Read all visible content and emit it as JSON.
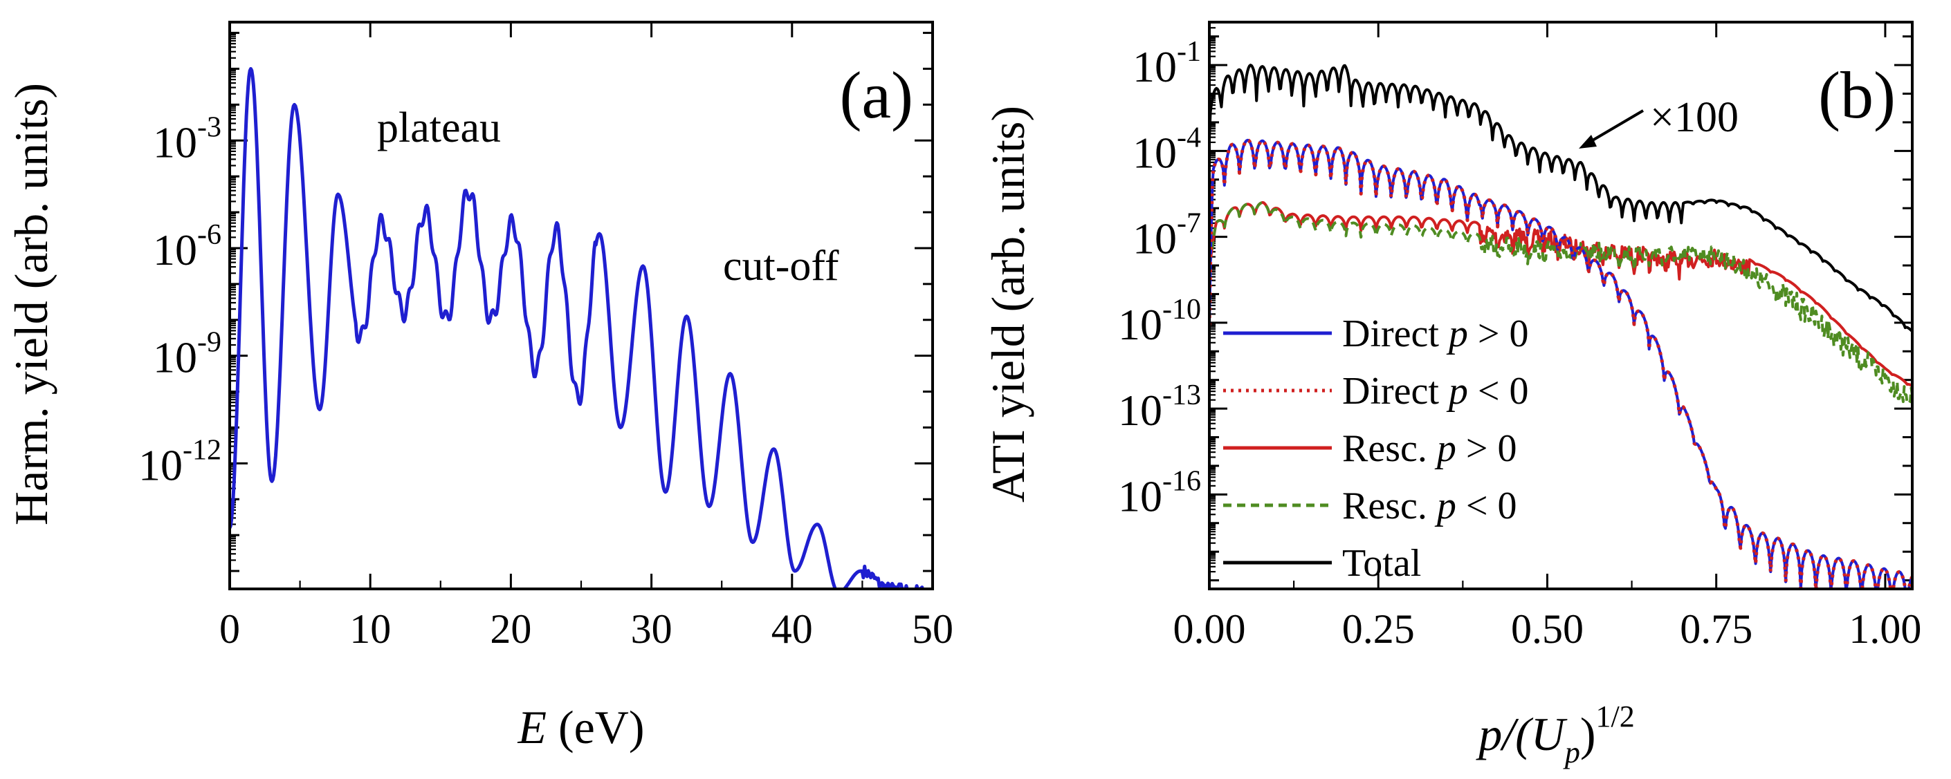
{
  "chart_data": [
    {
      "type": "line",
      "panel_label": "(a)",
      "xlabel": "E",
      "xlabel_unit": "(eV)",
      "ylabel": "Harm. yield (arb. units)",
      "xlim": [
        0,
        50
      ],
      "ylog10_lim": [
        -15.5,
        0.3
      ],
      "xticks": [
        "0",
        "10",
        "20",
        "30",
        "40",
        "50"
      ],
      "yticks": [
        {
          "exp": -3,
          "text": "10",
          "sup": "-3"
        },
        {
          "exp": -6,
          "text": "10",
          "sup": "-6"
        },
        {
          "exp": -9,
          "text": "10",
          "sup": "-9"
        },
        {
          "exp": -12,
          "text": "10",
          "sup": "-12"
        }
      ],
      "annotations": {
        "plateau": "plateau",
        "cutoff": "cut-off"
      },
      "color": "#1f1fd0",
      "peaks_x": [
        1.5,
        4.6,
        7.7,
        10.8,
        13.9,
        17.0,
        20.1,
        23.2,
        26.3,
        29.4,
        32.5,
        35.6,
        38.7,
        41.8,
        44.9
      ],
      "peaks_log10": [
        -1.0,
        -2.0,
        -4.5,
        -5.3,
        -5.0,
        -4.4,
        -5.3,
        -5.5,
        -5.6,
        -6.5,
        -7.9,
        -9.5,
        -11.6,
        -13.7,
        -15.0
      ],
      "valleys_x": [
        0.0,
        3.0,
        6.4,
        9.3,
        12.4,
        15.4,
        18.6,
        21.8,
        24.8,
        27.8,
        31.0,
        34.1,
        37.2,
        40.2,
        43.3,
        47.0,
        50.0
      ],
      "valleys_log10": [
        -13.8,
        -12.5,
        -10.5,
        -8.5,
        -7.8,
        -8.0,
        -8.0,
        -9.4,
        -10.2,
        -11.0,
        -12.8,
        -13.2,
        -14.2,
        -15.0,
        -15.6,
        -15.5,
        -15.6
      ]
    },
    {
      "type": "line",
      "panel_label": "(b)",
      "xlabel": "p/(U",
      "xlabel_sub": "p",
      "xlabel_close": ")",
      "xlabel_sup": "1/2",
      "ylabel": "ATI yield (arb. units)",
      "xlim": [
        0,
        1.04
      ],
      "ylog10_lim": [
        -19.3,
        0.5
      ],
      "xticks": [
        "0.00",
        "0.25",
        "0.50",
        "0.75",
        "1.00"
      ],
      "xtick_values": [
        0,
        0.25,
        0.5,
        0.75,
        1.0
      ],
      "yticks": [
        {
          "exp": -1,
          "text": "10",
          "sup": "-1"
        },
        {
          "exp": -4,
          "text": "10",
          "sup": "-4"
        },
        {
          "exp": -7,
          "text": "10",
          "sup": "-7"
        },
        {
          "exp": -10,
          "text": "10",
          "sup": "-10"
        },
        {
          "exp": -13,
          "text": "10",
          "sup": "-13"
        },
        {
          "exp": -16,
          "text": "10",
          "sup": "-16"
        }
      ],
      "annotation": "×100",
      "series": [
        {
          "name": "Direct p > 0",
          "prefix": "Direct ",
          "var": "p",
          "rel": " > 0",
          "color": "#1f1fd0",
          "dash": "",
          "points": [
            [
              0,
              -8.5
            ],
            [
              0.005,
              -4.5
            ],
            [
              0.03,
              -3.8
            ],
            [
              0.06,
              -3.6
            ],
            [
              0.1,
              -3.7
            ],
            [
              0.15,
              -3.8
            ],
            [
              0.2,
              -3.9
            ],
            [
              0.25,
              -4.5
            ],
            [
              0.3,
              -4.7
            ],
            [
              0.35,
              -5.0
            ],
            [
              0.4,
              -5.6
            ],
            [
              0.45,
              -6.0
            ],
            [
              0.5,
              -6.6
            ],
            [
              0.55,
              -7.4
            ],
            [
              0.6,
              -8.4
            ],
            [
              0.65,
              -10.0
            ],
            [
              0.7,
              -12.8
            ],
            [
              0.75,
              -15.8
            ],
            [
              0.8,
              -17.2
            ],
            [
              0.85,
              -17.6
            ],
            [
              0.9,
              -18.1
            ],
            [
              0.95,
              -18.3
            ],
            [
              1.0,
              -18.6
            ],
            [
              1.04,
              -18.8
            ]
          ]
        },
        {
          "name": "Direct p < 0",
          "prefix": "Direct ",
          "var": "p",
          "rel": " < 0",
          "color": "#d02020",
          "dash": "4,7",
          "points": [
            [
              0,
              -8.5
            ],
            [
              0.005,
              -4.5
            ],
            [
              0.03,
              -3.8
            ],
            [
              0.06,
              -3.6
            ],
            [
              0.1,
              -3.7
            ],
            [
              0.15,
              -3.8
            ],
            [
              0.2,
              -3.9
            ],
            [
              0.25,
              -4.5
            ],
            [
              0.3,
              -4.7
            ],
            [
              0.35,
              -5.0
            ],
            [
              0.4,
              -5.6
            ],
            [
              0.45,
              -6.0
            ],
            [
              0.5,
              -6.6
            ],
            [
              0.55,
              -7.4
            ],
            [
              0.6,
              -8.4
            ],
            [
              0.65,
              -10.0
            ],
            [
              0.7,
              -12.8
            ],
            [
              0.75,
              -15.8
            ],
            [
              0.8,
              -17.2
            ],
            [
              0.85,
              -17.6
            ],
            [
              0.9,
              -18.1
            ],
            [
              0.95,
              -18.3
            ],
            [
              1.0,
              -18.6
            ],
            [
              1.04,
              -18.8
            ]
          ]
        },
        {
          "name": "Resc. p > 0",
          "prefix": "Resc. ",
          "var": "p",
          "rel": " > 0",
          "color": "#d02020",
          "dash": "",
          "points": [
            [
              0,
              -7.8
            ],
            [
              0.01,
              -6.5
            ],
            [
              0.04,
              -5.9
            ],
            [
              0.08,
              -5.8
            ],
            [
              0.12,
              -6.2
            ],
            [
              0.2,
              -6.3
            ],
            [
              0.3,
              -6.3
            ],
            [
              0.4,
              -6.5
            ],
            [
              0.5,
              -6.8
            ],
            [
              0.6,
              -7.2
            ],
            [
              0.7,
              -7.5
            ],
            [
              0.75,
              -7.4
            ],
            [
              0.8,
              -7.8
            ],
            [
              0.85,
              -8.4
            ],
            [
              0.9,
              -9.3
            ],
            [
              0.95,
              -10.5
            ],
            [
              1.0,
              -11.6
            ],
            [
              1.04,
              -12.2
            ]
          ]
        },
        {
          "name": "Resc. p < 0",
          "prefix": "Resc. ",
          "var": "p",
          "rel": " < 0",
          "color": "#4f8c22",
          "dash": "12,8",
          "points": [
            [
              0,
              -7.8
            ],
            [
              0.01,
              -6.5
            ],
            [
              0.04,
              -5.9
            ],
            [
              0.08,
              -5.8
            ],
            [
              0.12,
              -6.3
            ],
            [
              0.2,
              -6.5
            ],
            [
              0.3,
              -6.6
            ],
            [
              0.4,
              -6.9
            ],
            [
              0.5,
              -7.1
            ],
            [
              0.6,
              -7.2
            ],
            [
              0.7,
              -7.3
            ],
            [
              0.75,
              -7.3
            ],
            [
              0.8,
              -7.9
            ],
            [
              0.85,
              -8.6
            ],
            [
              0.9,
              -9.5
            ],
            [
              0.95,
              -10.6
            ],
            [
              1.0,
              -11.5
            ],
            [
              1.04,
              -12.3
            ]
          ]
        },
        {
          "name": "Total",
          "prefix": "Total",
          "var": "",
          "rel": "",
          "color": "#000000",
          "dash": "",
          "points": [
            [
              0,
              -2.2
            ],
            [
              0.01,
              -1.8
            ],
            [
              0.03,
              -1.3
            ],
            [
              0.06,
              -1.0
            ],
            [
              0.1,
              -1.1
            ],
            [
              0.15,
              -1.3
            ],
            [
              0.2,
              -1.0
            ],
            [
              0.22,
              -1.6
            ],
            [
              0.3,
              -1.7
            ],
            [
              0.4,
              -2.4
            ],
            [
              0.45,
              -3.6
            ],
            [
              0.5,
              -4.1
            ],
            [
              0.55,
              -4.4
            ],
            [
              0.6,
              -5.6
            ],
            [
              0.65,
              -5.8
            ],
            [
              0.7,
              -5.8
            ],
            [
              0.75,
              -5.7
            ],
            [
              0.8,
              -6.0
            ],
            [
              0.85,
              -6.8
            ],
            [
              0.9,
              -7.6
            ],
            [
              0.95,
              -8.6
            ],
            [
              1.0,
              -9.4
            ],
            [
              1.04,
              -10.3
            ]
          ]
        }
      ]
    }
  ]
}
